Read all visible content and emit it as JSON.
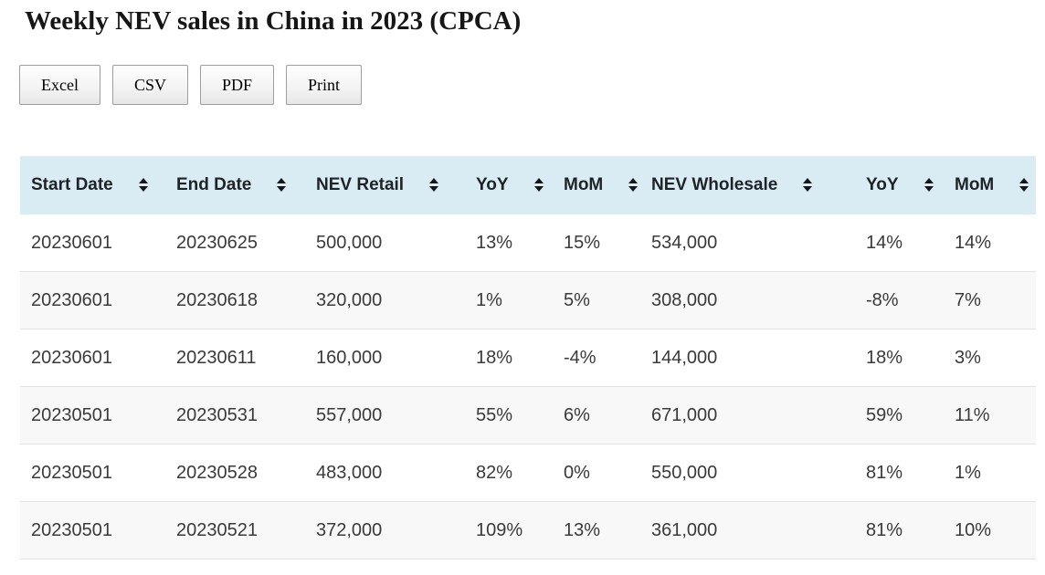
{
  "page": {
    "title": "Weekly NEV sales in China in 2023 (CPCA)"
  },
  "toolbar": {
    "buttons": [
      {
        "label": "Excel"
      },
      {
        "label": "CSV"
      },
      {
        "label": "PDF"
      },
      {
        "label": "Print"
      }
    ]
  },
  "table": {
    "columns": [
      {
        "label": "Start Date",
        "sort_icon": "sort-both"
      },
      {
        "label": "End Date",
        "sort_icon": "sort-both"
      },
      {
        "label": "NEV Retail",
        "sort_icon": "sort-both"
      },
      {
        "label": "YoY",
        "sort_icon": "sort-both"
      },
      {
        "label": "MoM",
        "sort_icon": "sort-both"
      },
      {
        "label": "NEV Wholesale",
        "sort_icon": "sort-both"
      },
      {
        "label": "YoY",
        "sort_icon": "sort-both"
      },
      {
        "label": "MoM",
        "sort_icon": "sort-both"
      }
    ],
    "rows": [
      [
        "20230601",
        "20230625",
        "500,000",
        "13%",
        "15%",
        "534,000",
        "14%",
        "14%"
      ],
      [
        "20230601",
        "20230618",
        "320,000",
        "1%",
        "5%",
        "308,000",
        "-8%",
        "7%"
      ],
      [
        "20230601",
        "20230611",
        "160,000",
        "18%",
        "-4%",
        "144,000",
        "18%",
        "3%"
      ],
      [
        "20230501",
        "20230531",
        "557,000",
        "55%",
        "6%",
        "671,000",
        "59%",
        "11%"
      ],
      [
        "20230501",
        "20230528",
        "483,000",
        "82%",
        "0%",
        "550,000",
        "81%",
        "1%"
      ],
      [
        "20230501",
        "20230521",
        "372,000",
        "109%",
        "13%",
        "361,000",
        "81%",
        "10%"
      ]
    ]
  },
  "icons": {
    "sort_both": "▲▼"
  },
  "colors": {
    "header_bg": "#d9ecf4",
    "stripe_bg": "#f8f8f8",
    "row_border": "#e2e2e2",
    "header_text": "#1f2328",
    "cell_text": "#3a3a3a",
    "sort_icon": "#15171c"
  }
}
